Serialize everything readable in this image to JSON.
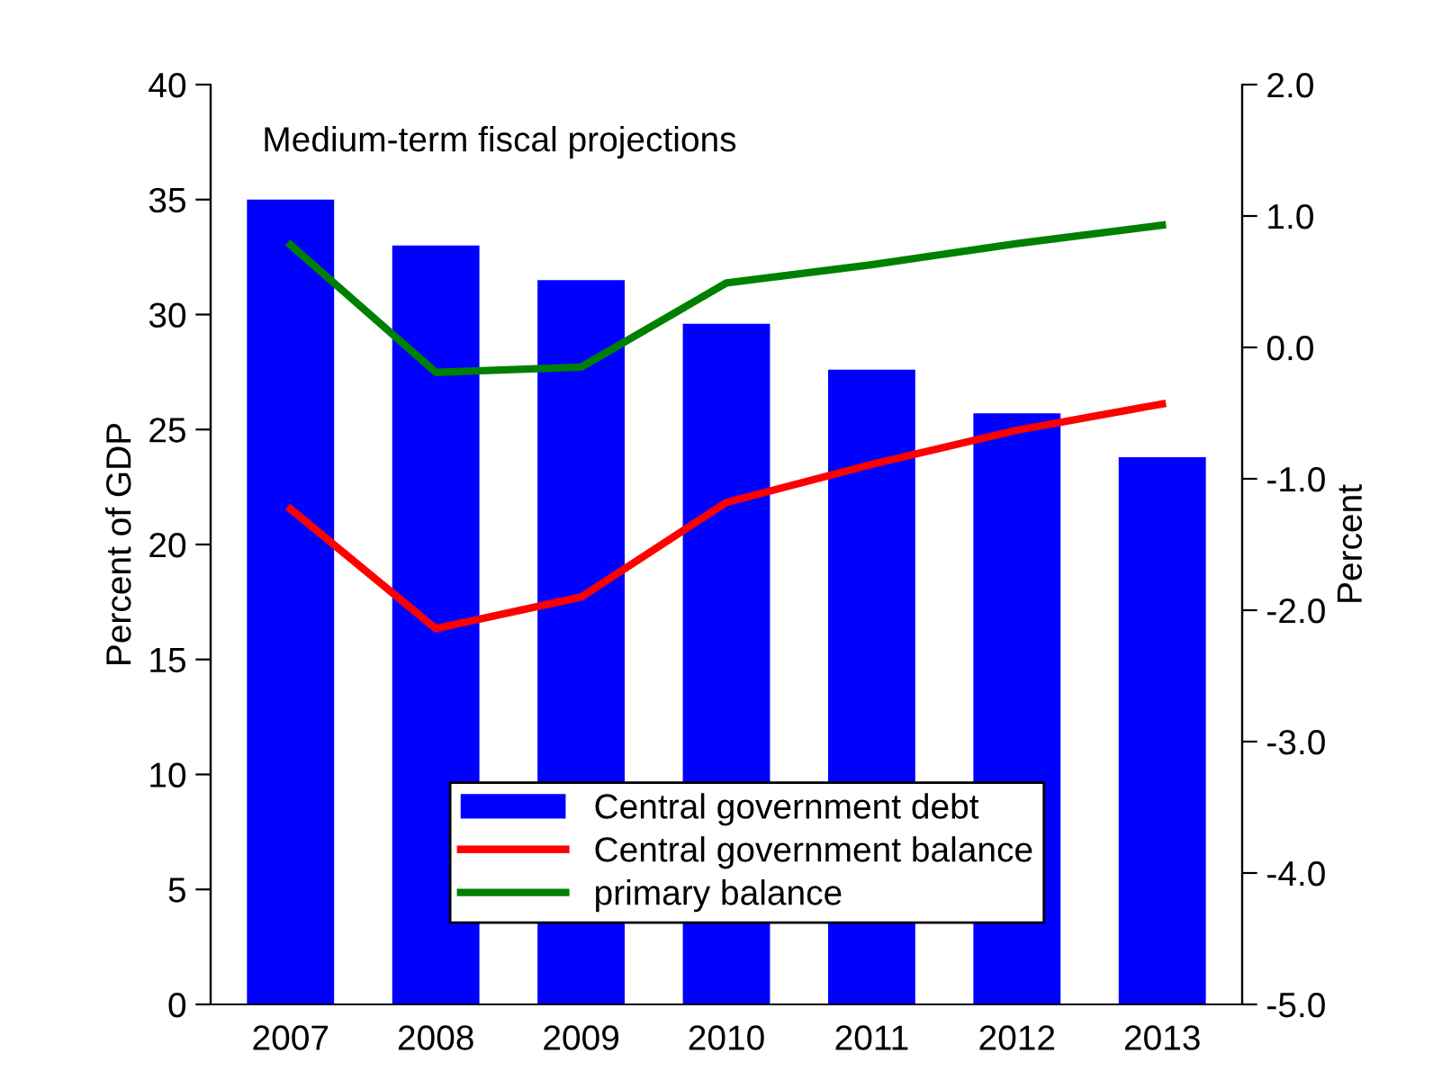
{
  "chart_data": {
    "type": "bar",
    "ylabel": "Percent of GDP",
    "y2label": "Percent",
    "annotations": [
      "Medium-term fiscal projections"
    ],
    "categories": [
      "2007",
      "2008",
      "2009",
      "2010",
      "2011",
      "2012",
      "2013"
    ],
    "series": [
      {
        "name": "Central government debt",
        "color": "#0000ff",
        "values": [
          35.0,
          33.0,
          31.5,
          29.6,
          27.6,
          25.7,
          23.8
        ]
      },
      {
        "name": "Central government balance",
        "type": "line",
        "axis": "y2",
        "color": "#ff0000",
        "values": [
          -1.23,
          -2.14,
          -1.9,
          -1.18,
          -0.89,
          -0.63,
          -0.43
        ]
      },
      {
        "name": "primary balance",
        "type": "line",
        "axis": "y2",
        "color": "#008000",
        "values": [
          0.78,
          -0.19,
          -0.15,
          0.49,
          0.63,
          0.79,
          0.93
        ]
      }
    ],
    "ylim": [
      0,
      40
    ],
    "yticks": [
      0,
      5,
      10,
      15,
      20,
      25,
      30,
      35,
      40
    ],
    "y2lim": [
      -5,
      2
    ],
    "y2ticks": [
      {
        "value": -5,
        "label": "-5.0"
      },
      {
        "value": -4,
        "label": "-4.0"
      },
      {
        "value": -3,
        "label": "-3.0"
      },
      {
        "value": -2,
        "label": "-2.0"
      },
      {
        "value": -1,
        "label": "-1.0"
      },
      {
        "value": 0,
        "label": "0.0"
      },
      {
        "value": 1,
        "label": "1.0"
      },
      {
        "value": 2,
        "label": "2.0"
      }
    ],
    "grid": false,
    "legend": "bottom",
    "marker": "none",
    "line_style": "solid"
  }
}
